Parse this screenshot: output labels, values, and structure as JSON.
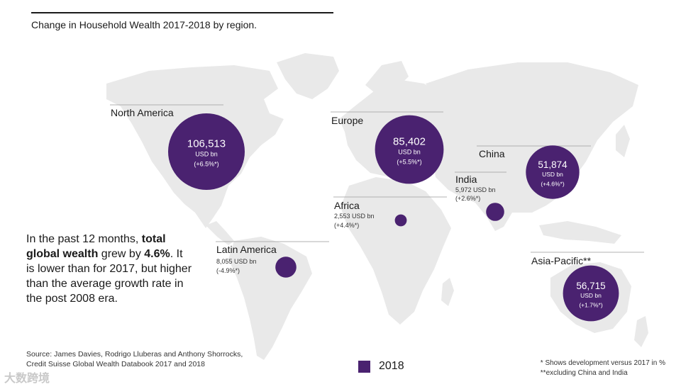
{
  "title": "Change in Household Wealth 2017-2018 by region.",
  "summary": {
    "part1": "In the past 12 months, ",
    "bold1": "total global wealth",
    "part2": " grew by ",
    "bold2": "4.6%",
    "part3": ". It is lower than for 2017, but higher than the average growth rate in the post 2008 era."
  },
  "source": {
    "line1": "Source: James Davies, Rodrigo Lluberas and Anthony Shorrocks,",
    "line2": "Credit Suisse Global Wealth Databook 2017 and 2018"
  },
  "legend": {
    "label": "2018"
  },
  "notes": {
    "line1": "* Shows development versus 2017 in %",
    "line2": "**excluding China and India"
  },
  "watermark": "大数跨境",
  "colors": {
    "bubble": "#4a2270",
    "map": "#e9e9e9",
    "rule": "#b0b0b0"
  },
  "chart_data": {
    "type": "bubble-map",
    "title": "Change in Household Wealth 2017-2018 by region.",
    "unit": "USD bn",
    "year": "2018",
    "regions": [
      {
        "name": "North America",
        "value": 106513,
        "value_text": "106,513",
        "unit_text": "USD bn",
        "change": 6.5,
        "change_text": "(+6.5%*)"
      },
      {
        "name": "Europe",
        "value": 85402,
        "value_text": "85,402",
        "unit_text": "USD bn",
        "change": 5.5,
        "change_text": "(+5.5%*)"
      },
      {
        "name": "China",
        "value": 51874,
        "value_text": "51,874",
        "unit_text": "USD bn",
        "change": 4.6,
        "change_text": "(+4.6%*)"
      },
      {
        "name": "India",
        "value": 5972,
        "value_text": "5,972 USD bn",
        "unit_text": "",
        "change": 2.6,
        "change_text": "(+2.6%*)"
      },
      {
        "name": "Africa",
        "value": 2553,
        "value_text": "2,553 USD bn",
        "unit_text": "",
        "change": 4.4,
        "change_text": "(+4.4%*)"
      },
      {
        "name": "Latin America",
        "value": 8055,
        "value_text": "8,055 USD bn",
        "unit_text": "",
        "change": -4.9,
        "change_text": "(-4.9%*)"
      },
      {
        "name": "Asia-Pacific**",
        "value": 56715,
        "value_text": "56,715",
        "unit_text": "USD bn",
        "change": 1.7,
        "change_text": "(+1.7%*)"
      }
    ]
  }
}
